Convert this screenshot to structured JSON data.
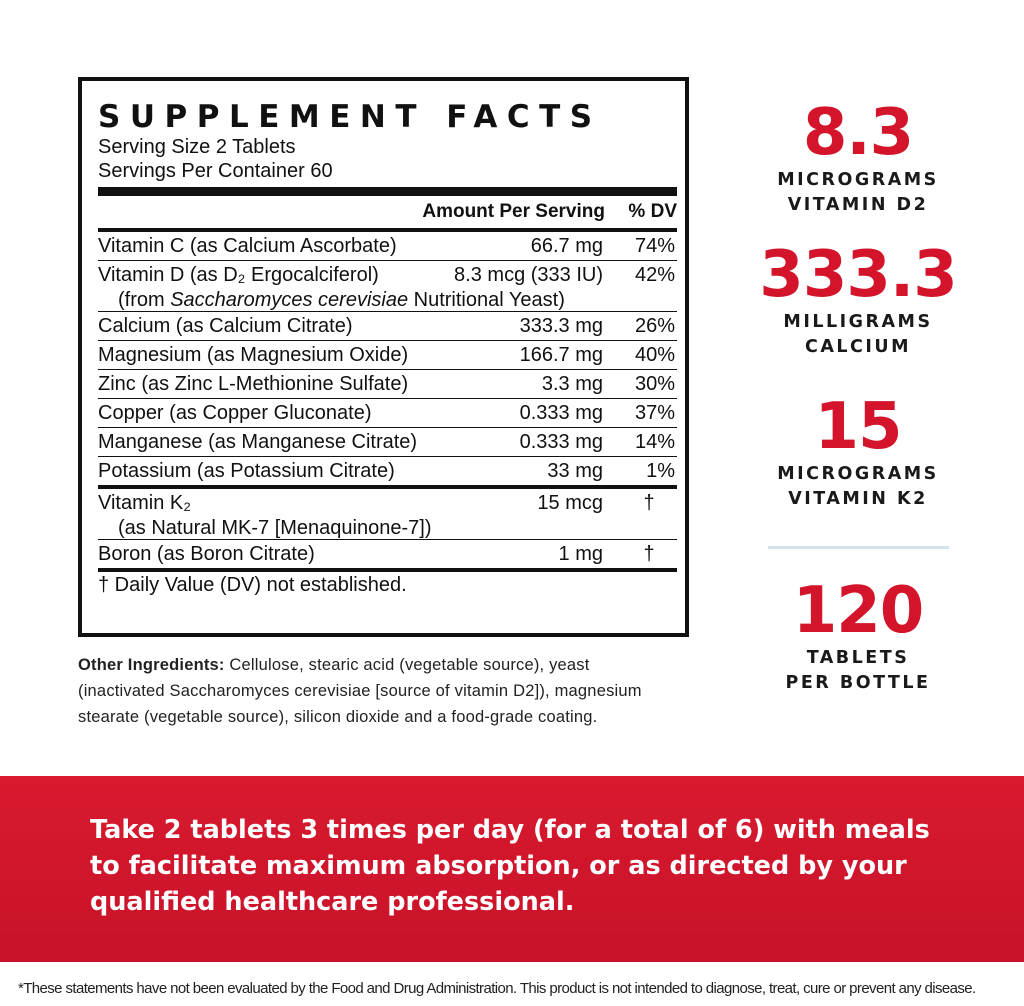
{
  "facts": {
    "title": "SUPPLEMENT FACTS",
    "serving_size": "Serving Size 2 Tablets",
    "servings_per_container": "Servings Per Container 60",
    "header": {
      "amount": "Amount Per Serving",
      "dv": "% DV"
    },
    "rows": [
      {
        "name": "Vitamin C (as Calcium Ascorbate)",
        "amount": "66.7 mg",
        "dv": "74%"
      },
      {
        "name": "Vitamin D (as D₂ Ergocalciferol)",
        "amount": "8.3 mcg (333 IU)",
        "dv": "42%",
        "note": {
          "prefix": "(from ",
          "italic": "Saccharomyces cerevisiae",
          "suffix": " Nutritional Yeast)"
        }
      },
      {
        "name": "Calcium (as Calcium Citrate)",
        "amount": "333.3 mg",
        "dv": "26%"
      },
      {
        "name": "Magnesium (as Magnesium Oxide)",
        "amount": "166.7 mg",
        "dv": "40%"
      },
      {
        "name": "Zinc (as Zinc L-Methionine Sulfate)",
        "amount": "3.3 mg",
        "dv": "30%"
      },
      {
        "name": "Copper (as Copper Gluconate)",
        "amount": "0.333 mg",
        "dv": "37%"
      },
      {
        "name": "Manganese (as Manganese Citrate)",
        "amount": "0.333 mg",
        "dv": "14%"
      },
      {
        "name": "Potassium (as Potassium Citrate)",
        "amount": "33 mg",
        "dv": "1%"
      }
    ],
    "other_rows": [
      {
        "name": "Vitamin K₂",
        "amount": "15 mcg",
        "dv": "†",
        "note": {
          "prefix": "(as Natural MK-7 [Menaquinone-7])"
        }
      },
      {
        "name": "Boron (as Boron Citrate)",
        "amount": "1 mg",
        "dv": "†"
      }
    ],
    "footnote": "† Daily Value (DV) not established."
  },
  "other_ingredients": {
    "label": "Other Ingredients:",
    "text": " Cellulose, stearic acid (vegetable source), yeast (inactivated Saccharomyces cerevisiae [source of vitamin D2]), magnesium stearate (vegetable source), silicon dioxide and a food-grade coating."
  },
  "stats": [
    {
      "value": "8.3",
      "lines": [
        "MICROGRAMS",
        "VITAMIN D2"
      ]
    },
    {
      "value": "333.3",
      "lines": [
        "MILLIGRAMS",
        "CALCIUM"
      ]
    },
    {
      "value": "15",
      "lines": [
        "MICROGRAMS",
        "VITAMIN K2"
      ]
    },
    {
      "value": "120",
      "lines": [
        "TABLETS",
        "PER BOTTLE"
      ]
    }
  ],
  "directions": "Take 2 tablets 3 times per day (for a total of 6) with meals to facilitate maximum absorption, or as directed by your qualified healthcare professional.",
  "disclaimer": "*These statements have not been evaluated by the Food and Drug Administration. This product is not intended to diagnose, treat, cure or prevent any disease."
}
